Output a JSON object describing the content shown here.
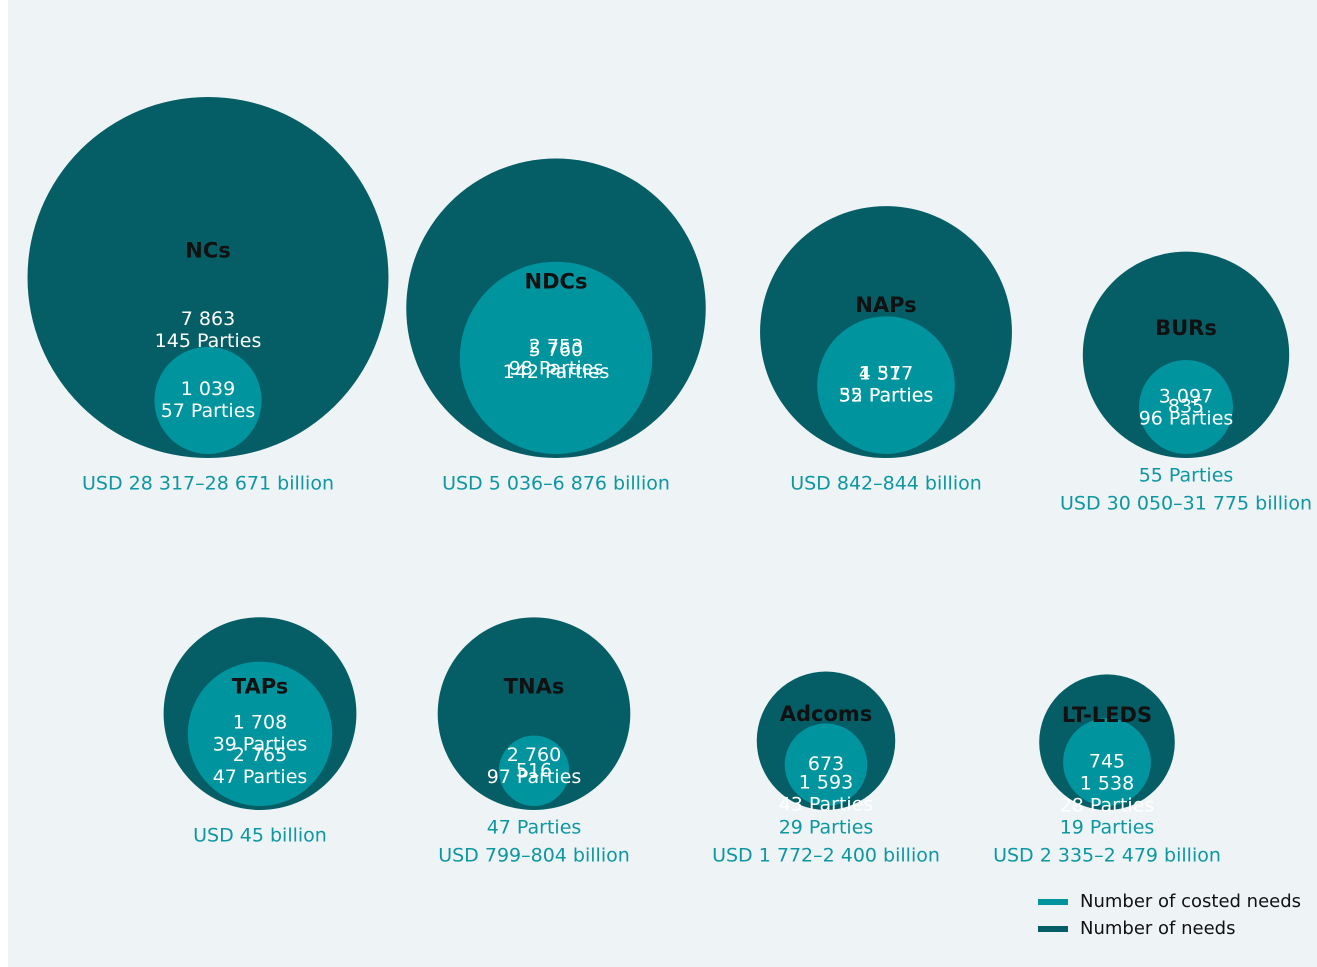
{
  "chart_data": {
    "type": "bubble",
    "categories": [
      "NCs",
      "NDCs",
      "NAPs",
      "BURs",
      "TAPs",
      "TNAs",
      "Adcoms",
      "LT-LEDS"
    ],
    "series": [
      {
        "name": "Number of needs",
        "color": "#055e66",
        "values": [
          7863,
          5760,
          4317,
          3097,
          2765,
          2760,
          1593,
          1538
        ],
        "value_labels": [
          "7 863",
          "5 760",
          "4 317",
          "3 097",
          "2 765",
          "2 760",
          "1 593",
          "1 538"
        ],
        "parties": [
          "145 Parties",
          "142 Parties",
          "52 Parties",
          "96 Parties",
          "47 Parties",
          "97 Parties",
          "43 Parties",
          "28 Parties"
        ]
      },
      {
        "name": "Number of costed needs",
        "color": "#00949f",
        "values": [
          1039,
          2753,
          1577,
          835,
          1708,
          516,
          673,
          745
        ],
        "value_labels": [
          "1 039",
          "2 753",
          "1 577",
          "835",
          "1 708",
          "516",
          "673",
          "745"
        ],
        "parties": [
          "57 Parties",
          "98 Parties",
          "35 Parties",
          "55 Parties",
          "39 Parties",
          "47 Parties",
          "29 Parties",
          "19 Parties"
        ]
      }
    ],
    "cost_labels": [
      "USD 28 317–28 671 billion",
      "USD 5 036–6 876 billion",
      "USD 842–844 billion",
      "USD 30 050–31 775 billion",
      "USD 45 billion",
      "USD 799–804 billion",
      "USD 1 772–2 400 billion",
      "USD 2 335–2 479 billion"
    ]
  }
}
